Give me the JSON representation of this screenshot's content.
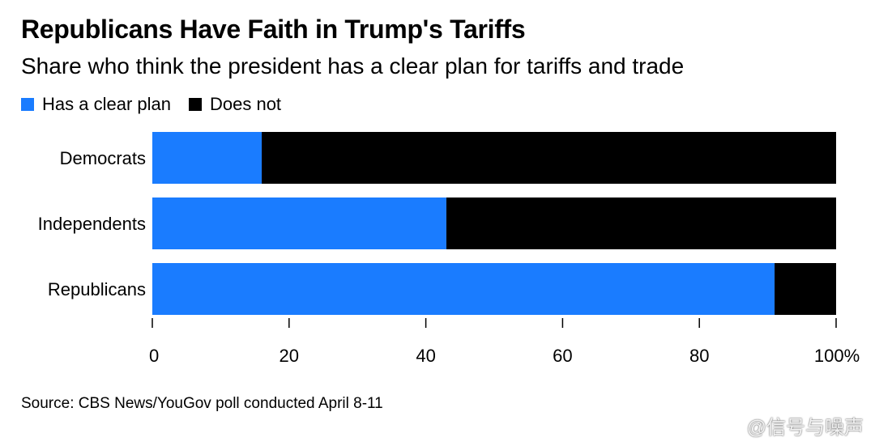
{
  "chart_data": {
    "type": "bar",
    "orientation": "horizontal",
    "stacked": true,
    "title": "Republicans Have Faith in Trump's Tariffs",
    "subtitle": "Share who think the president has a clear plan for tariffs and trade",
    "categories": [
      "Democrats",
      "Independents",
      "Republicans"
    ],
    "series": [
      {
        "name": "Has a clear plan",
        "color": "#1a7cff",
        "values": [
          16,
          43,
          91
        ]
      },
      {
        "name": "Does not",
        "color": "#000000",
        "values": [
          84,
          57,
          9
        ]
      }
    ],
    "xlim": [
      0,
      100
    ],
    "ticks": [
      0,
      20,
      40,
      60,
      80,
      100
    ],
    "tick_labels": [
      "0",
      "20",
      "40",
      "60",
      "80",
      "100%"
    ],
    "xlabel": "",
    "ylabel": "",
    "grid": false,
    "legend_position": "top-left"
  },
  "source": "Source: CBS News/YouGov poll conducted April 8-11",
  "watermark": "@信号与噪声"
}
